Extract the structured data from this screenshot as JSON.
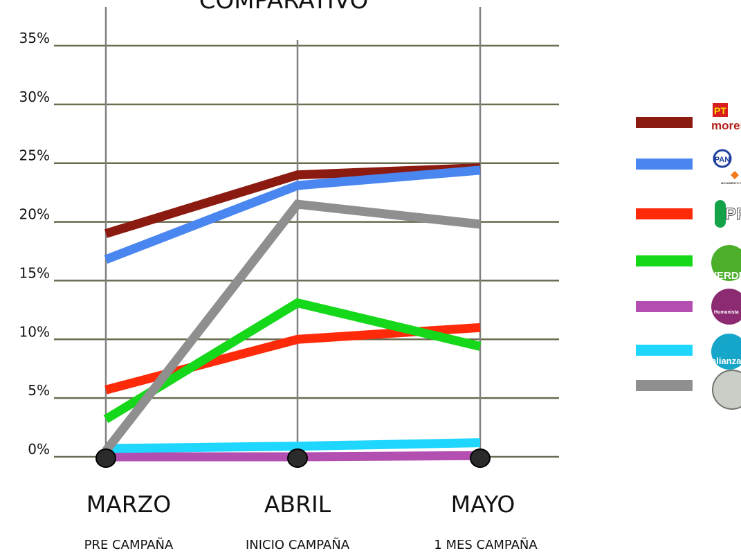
{
  "chart_data": {
    "type": "line",
    "title": "COMPARATIVO",
    "categories": [
      "MARZO",
      "ABRIL",
      "MAYO"
    ],
    "category_sublabels": [
      "PRE CAMPAÑA",
      "INICIO CAMPAÑA",
      "1 MES CAMPAÑA"
    ],
    "y_ticks": [
      "0%",
      "5%",
      "10%",
      "15%",
      "20%",
      "25%",
      "30%",
      "35%"
    ],
    "ylim": [
      0,
      35
    ],
    "grid": true,
    "legend_position": "right",
    "series": [
      {
        "color": "#8b1a10",
        "logo": "pt-morena-logo",
        "logo_text": [
          "PT",
          "morena"
        ],
        "values": [
          19.0,
          24.0,
          24.6
        ]
      },
      {
        "color": "#4a86f0",
        "logo": "pan-movimiento-ciudadano-logo",
        "logo_text": [
          "PAN",
          "MOVIMIENTO CIUDADANO"
        ],
        "values": [
          16.8,
          23.1,
          24.4
        ]
      },
      {
        "color": "#ff2a0a",
        "logo": "pri-logo",
        "logo_text": [
          "PRI"
        ],
        "values": [
          5.7,
          10.0,
          11.0
        ]
      },
      {
        "color": "#16d81a",
        "logo": "verde-logo",
        "logo_text": [
          "VERDE"
        ],
        "values": [
          3.2,
          13.1,
          9.4
        ]
      },
      {
        "color": "#b24fb0",
        "logo": "humanista-logo",
        "logo_text": [
          "Humanista"
        ],
        "values": [
          0.0,
          0.0,
          0.1
        ]
      },
      {
        "color": "#1fd6ff",
        "logo": "nueva-alianza-logo",
        "logo_text": [
          "alianza"
        ],
        "values": [
          0.7,
          0.9,
          1.2
        ]
      },
      {
        "color": "#8f8f8f",
        "logo": "blank-circle-logo",
        "logo_text": [],
        "values": [
          0.5,
          21.5,
          19.8
        ]
      }
    ]
  }
}
